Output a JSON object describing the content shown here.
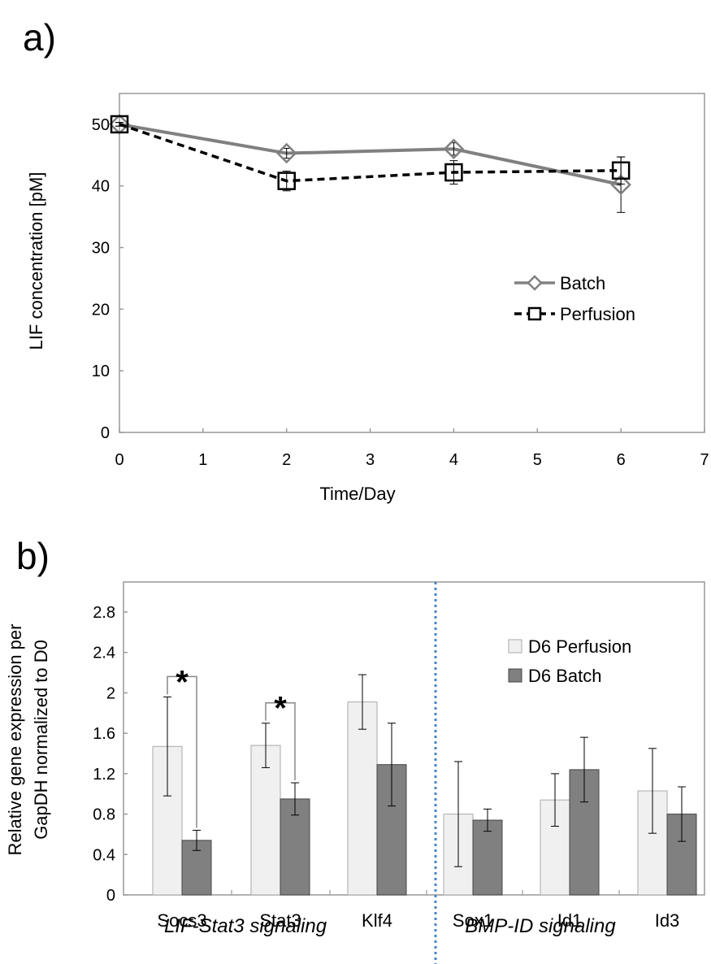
{
  "chart_data": [
    {
      "panel_label": "a)",
      "type": "line",
      "xlabel": "Time/Day",
      "ylabel": "LIF concentration [pM]",
      "xlim": [
        0,
        7
      ],
      "ylim": [
        0,
        55
      ],
      "x_ticks": [
        "0",
        "1",
        "2",
        "3",
        "4",
        "5",
        "6",
        "7"
      ],
      "y_ticks": [
        "0",
        "10",
        "20",
        "30",
        "40",
        "50"
      ],
      "grid": false,
      "legend_position": "right",
      "series": [
        {
          "name": "Batch",
          "color": "#808080",
          "marker": "diamond",
          "line_style": "solid",
          "points": [
            {
              "x": 0,
              "y": 50,
              "err": 0.3
            },
            {
              "x": 2,
              "y": 45.3,
              "err": 0.8
            },
            {
              "x": 4,
              "y": 46,
              "err": 1.0
            },
            {
              "x": 6,
              "y": 40.2,
              "err": 4.5
            }
          ]
        },
        {
          "name": "Perfusion",
          "color": "#000000",
          "marker": "square",
          "line_style": "dashed",
          "points": [
            {
              "x": 0,
              "y": 50,
              "err": 0.3
            },
            {
              "x": 2,
              "y": 40.8,
              "err": 1.6
            },
            {
              "x": 4,
              "y": 42.2,
              "err": 1.9
            },
            {
              "x": 6,
              "y": 42.5,
              "err": 2.2
            }
          ]
        }
      ]
    },
    {
      "panel_label": "b)",
      "type": "bar",
      "ylabel_lines": [
        "Relative gene expression per",
        "GapDH  normalized to D0"
      ],
      "ylim": [
        0,
        2.8
      ],
      "y_ticks": [
        "0",
        "0.4",
        "0.8",
        "1.2",
        "1.6",
        "2",
        "2.4",
        "2.8"
      ],
      "categories": [
        "Socs3",
        "Stat3",
        "Klf4",
        "Sox1",
        "Id1",
        "Id3"
      ],
      "groups": [
        "LIF-Stat3 signaling",
        "BMP-ID signaling"
      ],
      "legend_position": "top-right",
      "significance": [
        {
          "category": "Socs3",
          "label": "*"
        },
        {
          "category": "Stat3",
          "label": "*"
        }
      ],
      "series": [
        {
          "name": "D6 Perfusion",
          "color": "#f0f0f0",
          "values": [
            1.47,
            1.48,
            1.91,
            0.8,
            0.94,
            1.03
          ],
          "errors": [
            0.49,
            0.22,
            0.27,
            0.52,
            0.26,
            0.42
          ]
        },
        {
          "name": "D6 Batch",
          "color": "#808080",
          "values": [
            0.54,
            0.95,
            1.29,
            0.74,
            1.24,
            0.8
          ],
          "errors": [
            0.1,
            0.16,
            0.41,
            0.11,
            0.32,
            0.27
          ]
        }
      ]
    }
  ]
}
